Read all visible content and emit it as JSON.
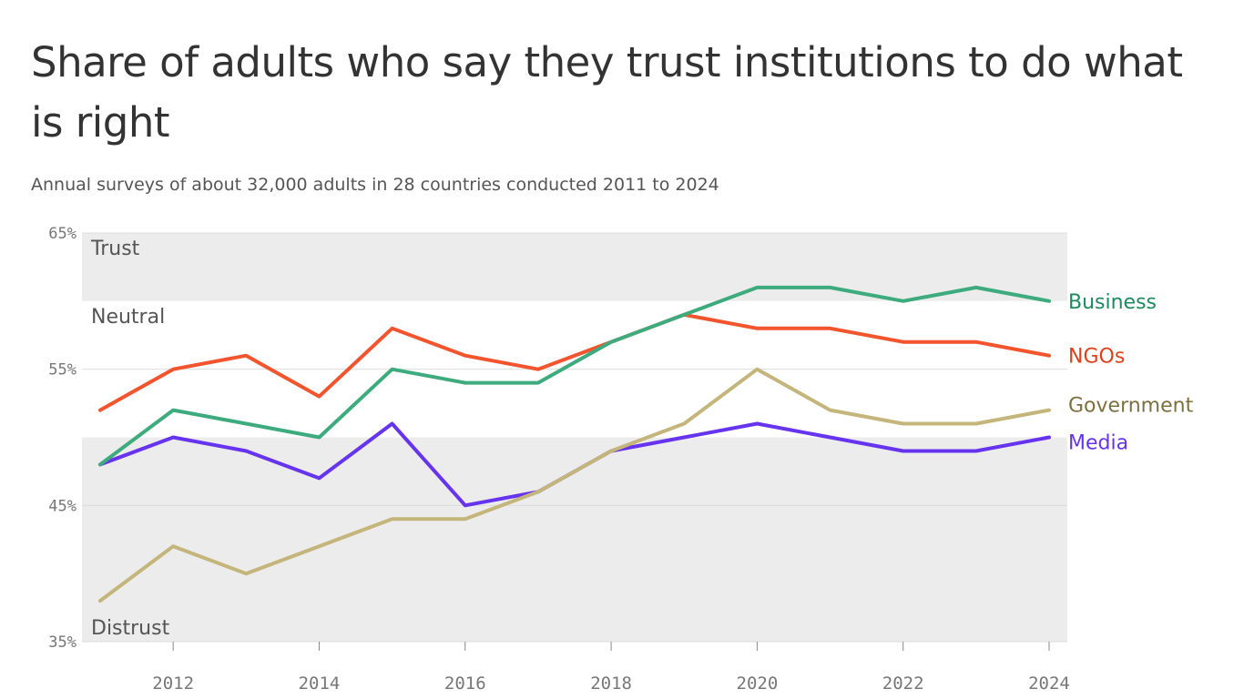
{
  "chart_data": {
    "type": "line",
    "title": "Share of adults who say they trust institutions to do what is right",
    "subtitle": "Annual surveys of about 32,000 adults in 28 countries conducted 2011 to 2024",
    "x": [
      2011,
      2012,
      2013,
      2014,
      2015,
      2016,
      2017,
      2018,
      2019,
      2020,
      2021,
      2022,
      2023,
      2024
    ],
    "xlim": [
      2011,
      2024
    ],
    "x_ticks": [
      "2012",
      "2014",
      "2016",
      "2018",
      "2020",
      "2022",
      "2024"
    ],
    "ylim": [
      35,
      65
    ],
    "y_ticks": [
      "65%",
      "55%",
      "45%",
      "35%"
    ],
    "grid": true,
    "zones": [
      {
        "label": "Trust",
        "from": 60,
        "to": 65,
        "shaded": true
      },
      {
        "label": "Neutral",
        "from": 50,
        "to": 60,
        "shaded": false
      },
      {
        "label": "Distrust",
        "from": 35,
        "to": 50,
        "shaded": true
      }
    ],
    "series": [
      {
        "name": "Business",
        "color": "#3dab7e",
        "label_color": "#1f8a5e",
        "values": [
          48,
          52,
          51,
          50,
          55,
          54,
          54,
          57,
          59,
          61,
          61,
          60,
          61,
          60
        ]
      },
      {
        "name": "NGOs",
        "color": "#f2542d",
        "label_color": "#e0401a",
        "values": [
          52,
          55,
          56,
          53,
          58,
          56,
          55,
          57,
          59,
          58,
          58,
          57,
          57,
          56
        ]
      },
      {
        "name": "Government",
        "color": "#c4b57a",
        "label_color": "#7d7040",
        "values": [
          38,
          42,
          40,
          42,
          44,
          44,
          46,
          49,
          51,
          55,
          52,
          51,
          51,
          52
        ]
      },
      {
        "name": "Media",
        "color": "#6633ee",
        "label_color": "#6633ee",
        "values": [
          48,
          50,
          49,
          47,
          51,
          45,
          46,
          49,
          50,
          51,
          50,
          49,
          49,
          50
        ]
      }
    ]
  }
}
